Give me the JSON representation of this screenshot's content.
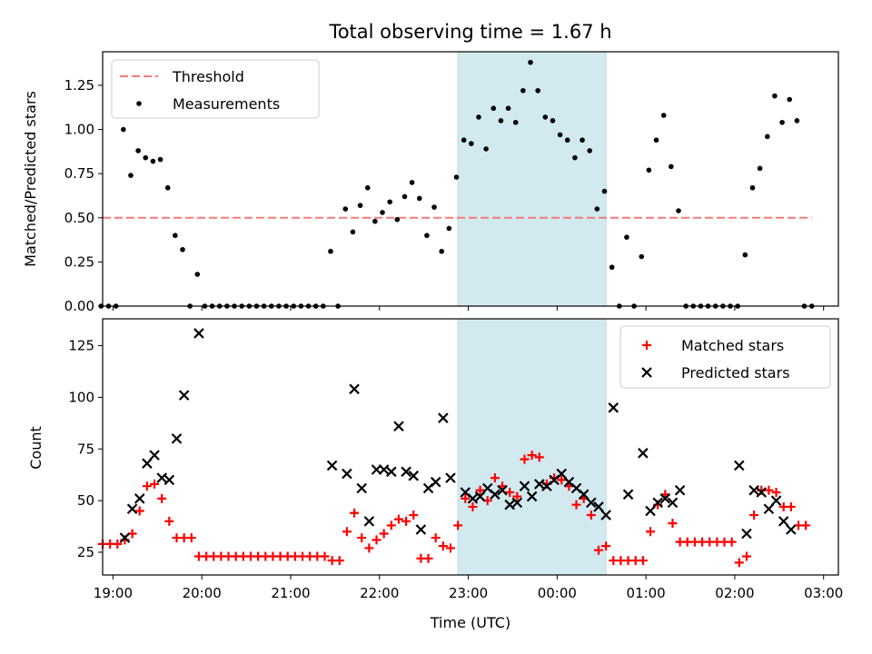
{
  "chart_data": [
    {
      "type": "scatter",
      "title": "Total observing time = 1.67 h",
      "ylabel": "Matched/Predicted stars",
      "xlabel": "",
      "xlim": [
        "18:53",
        "03:10"
      ],
      "ylim": [
        0,
        1.44
      ],
      "yticks": [
        "0.00",
        "0.25",
        "0.50",
        "0.75",
        "1.00",
        "1.25"
      ],
      "highlight_span": {
        "start": "22:53",
        "end": "00:33",
        "color": "#d2e9f0"
      },
      "legend_position": "upper left",
      "threshold": {
        "name": "Threshold",
        "value": 0.5,
        "start": "18:53",
        "end": "02:52",
        "color": "#f47a7a"
      },
      "series": [
        {
          "name": "Measurements",
          "color": "#000000",
          "marker": "dot",
          "points": [
            [
              "18:52",
              0
            ],
            [
              "18:57",
              0
            ],
            [
              "19:02",
              0
            ],
            [
              "19:07",
              1.0
            ],
            [
              "19:12",
              0.74
            ],
            [
              "19:17",
              0.88
            ],
            [
              "19:22",
              0.84
            ],
            [
              "19:27",
              0.82
            ],
            [
              "19:32",
              0.83
            ],
            [
              "19:37",
              0.67
            ],
            [
              "19:42",
              0.4
            ],
            [
              "19:47",
              0.32
            ],
            [
              "19:52",
              0
            ],
            [
              "19:57",
              0.18
            ],
            [
              "20:02",
              0
            ],
            [
              "20:07",
              0
            ],
            [
              "20:12",
              0
            ],
            [
              "20:17",
              0
            ],
            [
              "20:22",
              0
            ],
            [
              "20:27",
              0
            ],
            [
              "20:32",
              0
            ],
            [
              "20:37",
              0
            ],
            [
              "20:42",
              0
            ],
            [
              "20:47",
              0
            ],
            [
              "20:52",
              0
            ],
            [
              "20:57",
              0
            ],
            [
              "21:02",
              0
            ],
            [
              "21:07",
              0
            ],
            [
              "21:12",
              0
            ],
            [
              "21:17",
              0
            ],
            [
              "21:22",
              0
            ],
            [
              "21:27",
              0.31
            ],
            [
              "21:32",
              0
            ],
            [
              "21:37",
              0.55
            ],
            [
              "21:42",
              0.42
            ],
            [
              "21:47",
              0.57
            ],
            [
              "21:52",
              0.67
            ],
            [
              "21:57",
              0.48
            ],
            [
              "22:02",
              0.53
            ],
            [
              "22:07",
              0.59
            ],
            [
              "22:12",
              0.49
            ],
            [
              "22:17",
              0.62
            ],
            [
              "22:22",
              0.7
            ],
            [
              "22:27",
              0.61
            ],
            [
              "22:32",
              0.4
            ],
            [
              "22:37",
              0.56
            ],
            [
              "22:42",
              0.31
            ],
            [
              "22:47",
              0.44
            ],
            [
              "22:52",
              0.73
            ],
            [
              "22:57",
              0.94
            ],
            [
              "23:02",
              0.92
            ],
            [
              "23:07",
              1.07
            ],
            [
              "23:12",
              0.89
            ],
            [
              "23:17",
              1.12
            ],
            [
              "23:22",
              1.05
            ],
            [
              "23:27",
              1.12
            ],
            [
              "23:32",
              1.04
            ],
            [
              "23:37",
              1.22
            ],
            [
              "23:42",
              1.38
            ],
            [
              "23:47",
              1.22
            ],
            [
              "23:52",
              1.07
            ],
            [
              "23:57",
              1.05
            ],
            [
              "00:02",
              0.97
            ],
            [
              "00:07",
              0.94
            ],
            [
              "00:12",
              0.84
            ],
            [
              "00:17",
              0.94
            ],
            [
              "00:22",
              0.88
            ],
            [
              "00:27",
              0.55
            ],
            [
              "00:32",
              0.65
            ],
            [
              "00:37",
              0.22
            ],
            [
              "00:42",
              0
            ],
            [
              "00:47",
              0.39
            ],
            [
              "00:52",
              0
            ],
            [
              "00:57",
              0.28
            ],
            [
              "01:02",
              0.77
            ],
            [
              "01:07",
              0.94
            ],
            [
              "01:12",
              1.08
            ],
            [
              "01:17",
              0.79
            ],
            [
              "01:22",
              0.54
            ],
            [
              "01:27",
              0
            ],
            [
              "01:32",
              0
            ],
            [
              "01:37",
              0
            ],
            [
              "01:42",
              0
            ],
            [
              "01:47",
              0
            ],
            [
              "01:52",
              0
            ],
            [
              "01:57",
              0
            ],
            [
              "02:02",
              0
            ],
            [
              "02:07",
              0.29
            ],
            [
              "02:12",
              0.67
            ],
            [
              "02:17",
              0.78
            ],
            [
              "02:22",
              0.96
            ],
            [
              "02:27",
              1.19
            ],
            [
              "02:32",
              1.04
            ],
            [
              "02:37",
              1.17
            ],
            [
              "02:42",
              1.05
            ],
            [
              "02:47",
              0
            ],
            [
              "02:52",
              0
            ]
          ]
        }
      ],
      "x_tick_labels": []
    },
    {
      "type": "scatter",
      "title": "",
      "xlabel": "Time (UTC)",
      "ylabel": "Count",
      "xlim": [
        "18:53",
        "03:10"
      ],
      "ylim": [
        14,
        138
      ],
      "yticks": [
        "25",
        "50",
        "75",
        "100",
        "125"
      ],
      "xticks": [
        "19:00",
        "20:00",
        "21:00",
        "22:00",
        "23:00",
        "00:00",
        "01:00",
        "02:00",
        "03:00"
      ],
      "highlight_span": {
        "start": "22:53",
        "end": "00:33",
        "color": "#d2e9f0"
      },
      "legend_position": "upper right",
      "series": [
        {
          "name": "Matched stars",
          "color": "#ff0000",
          "marker": "plus",
          "points": [
            [
              "18:53",
              29
            ],
            [
              "18:58",
              29
            ],
            [
              "19:03",
              29
            ],
            [
              "19:08",
              31
            ],
            [
              "19:13",
              34
            ],
            [
              "19:18",
              45
            ],
            [
              "19:23",
              57
            ],
            [
              "19:28",
              58
            ],
            [
              "19:33",
              51
            ],
            [
              "19:38",
              40
            ],
            [
              "19:43",
              32
            ],
            [
              "19:48",
              32
            ],
            [
              "19:53",
              32
            ],
            [
              "19:58",
              23
            ],
            [
              "20:03",
              23
            ],
            [
              "20:08",
              23
            ],
            [
              "20:13",
              23
            ],
            [
              "20:18",
              23
            ],
            [
              "20:23",
              23
            ],
            [
              "20:28",
              23
            ],
            [
              "20:33",
              23
            ],
            [
              "20:38",
              23
            ],
            [
              "20:43",
              23
            ],
            [
              "20:48",
              23
            ],
            [
              "20:53",
              23
            ],
            [
              "20:58",
              23
            ],
            [
              "21:03",
              23
            ],
            [
              "21:08",
              23
            ],
            [
              "21:13",
              23
            ],
            [
              "21:18",
              23
            ],
            [
              "21:23",
              23
            ],
            [
              "21:28",
              21
            ],
            [
              "21:33",
              21
            ],
            [
              "21:38",
              35
            ],
            [
              "21:43",
              44
            ],
            [
              "21:48",
              32
            ],
            [
              "21:53",
              27
            ],
            [
              "21:58",
              31
            ],
            [
              "22:03",
              34
            ],
            [
              "22:08",
              38
            ],
            [
              "22:13",
              41
            ],
            [
              "22:18",
              40
            ],
            [
              "22:23",
              43
            ],
            [
              "22:28",
              22
            ],
            [
              "22:33",
              22
            ],
            [
              "22:38",
              32
            ],
            [
              "22:43",
              28
            ],
            [
              "22:48",
              27
            ],
            [
              "22:53",
              38
            ],
            [
              "22:58",
              51
            ],
            [
              "23:03",
              47
            ],
            [
              "23:08",
              55
            ],
            [
              "23:13",
              50
            ],
            [
              "23:18",
              61
            ],
            [
              "23:23",
              57
            ],
            [
              "23:28",
              54
            ],
            [
              "23:33",
              52
            ],
            [
              "23:38",
              70
            ],
            [
              "23:43",
              72
            ],
            [
              "23:48",
              71
            ],
            [
              "23:53",
              58
            ],
            [
              "23:58",
              61
            ],
            [
              "00:03",
              60
            ],
            [
              "00:08",
              57
            ],
            [
              "00:13",
              48
            ],
            [
              "00:18",
              51
            ],
            [
              "00:23",
              43
            ],
            [
              "00:28",
              26
            ],
            [
              "00:33",
              28
            ],
            [
              "00:38",
              21
            ],
            [
              "00:43",
              21
            ],
            [
              "00:48",
              21
            ],
            [
              "00:53",
              21
            ],
            [
              "00:58",
              21
            ],
            [
              "01:03",
              35
            ],
            [
              "01:08",
              48
            ],
            [
              "01:13",
              53
            ],
            [
              "01:18",
              39
            ],
            [
              "01:23",
              30
            ],
            [
              "01:28",
              30
            ],
            [
              "01:33",
              30
            ],
            [
              "01:38",
              30
            ],
            [
              "01:43",
              30
            ],
            [
              "01:48",
              30
            ],
            [
              "01:53",
              30
            ],
            [
              "01:58",
              30
            ],
            [
              "02:03",
              20
            ],
            [
              "02:08",
              23
            ],
            [
              "02:13",
              43
            ],
            [
              "02:18",
              55
            ],
            [
              "02:23",
              55
            ],
            [
              "02:28",
              54
            ],
            [
              "02:33",
              47
            ],
            [
              "02:38",
              47
            ],
            [
              "02:43",
              38
            ],
            [
              "02:48",
              38
            ]
          ]
        },
        {
          "name": "Predicted stars",
          "color": "#000000",
          "marker": "x",
          "points": [
            [
              "19:08",
              32
            ],
            [
              "19:13",
              46
            ],
            [
              "19:18",
              51
            ],
            [
              "19:23",
              68
            ],
            [
              "19:28",
              72
            ],
            [
              "19:33",
              61
            ],
            [
              "19:38",
              60
            ],
            [
              "19:43",
              80
            ],
            [
              "19:48",
              101
            ],
            [
              "19:58",
              131
            ],
            [
              "21:28",
              67
            ],
            [
              "21:38",
              63
            ],
            [
              "21:43",
              104
            ],
            [
              "21:48",
              56
            ],
            [
              "21:53",
              40
            ],
            [
              "21:58",
              65
            ],
            [
              "22:03",
              65
            ],
            [
              "22:08",
              64
            ],
            [
              "22:13",
              86
            ],
            [
              "22:18",
              64
            ],
            [
              "22:23",
              62
            ],
            [
              "22:28",
              36
            ],
            [
              "22:33",
              56
            ],
            [
              "22:38",
              59
            ],
            [
              "22:43",
              90
            ],
            [
              "22:48",
              61
            ],
            [
              "22:58",
              54
            ],
            [
              "23:03",
              51
            ],
            [
              "23:08",
              52
            ],
            [
              "23:13",
              56
            ],
            [
              "23:18",
              53
            ],
            [
              "23:23",
              55
            ],
            [
              "23:28",
              48
            ],
            [
              "23:33",
              49
            ],
            [
              "23:38",
              57
            ],
            [
              "23:43",
              52
            ],
            [
              "23:48",
              58
            ],
            [
              "23:53",
              57
            ],
            [
              "23:58",
              60
            ],
            [
              "00:03",
              63
            ],
            [
              "00:08",
              59
            ],
            [
              "00:13",
              56
            ],
            [
              "00:18",
              53
            ],
            [
              "00:23",
              49
            ],
            [
              "00:28",
              47
            ],
            [
              "00:33",
              43
            ],
            [
              "00:38",
              95
            ],
            [
              "00:48",
              53
            ],
            [
              "00:58",
              73
            ],
            [
              "01:03",
              45
            ],
            [
              "01:08",
              49
            ],
            [
              "01:13",
              51
            ],
            [
              "01:18",
              49
            ],
            [
              "01:23",
              55
            ],
            [
              "02:03",
              67
            ],
            [
              "02:08",
              34
            ],
            [
              "02:13",
              55
            ],
            [
              "02:18",
              54
            ],
            [
              "02:23",
              46
            ],
            [
              "02:28",
              50
            ],
            [
              "02:33",
              40
            ],
            [
              "02:38",
              36
            ]
          ]
        }
      ]
    }
  ]
}
